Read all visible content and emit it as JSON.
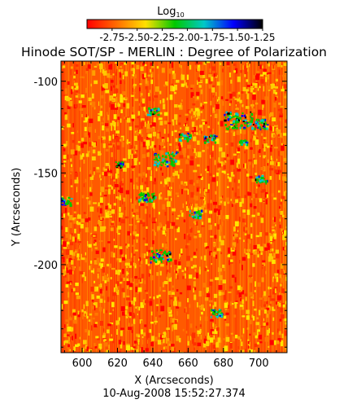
{
  "chart_data": {
    "type": "heatmap",
    "title": "Hinode SOT/SP - MERLIN : Degree of Polarization",
    "colorbar": {
      "label_main": "Log",
      "label_sub": "10",
      "ticks": [
        "-2.75",
        "-2.50",
        "-2.25",
        "-2.00",
        "-1.75",
        "-1.50",
        "-1.25"
      ],
      "range": [
        -3.0,
        -1.25
      ],
      "colors": [
        "#ff0000",
        "#ff6a00",
        "#ffe000",
        "#00c800",
        "#00c8c8",
        "#0000ff",
        "#000000"
      ]
    },
    "xlabel": "X (Arcseconds)",
    "ylabel": "Y (Arcseconds)",
    "xlim": [
      588,
      716
    ],
    "ylim": [
      -248,
      -89
    ],
    "xticks": [
      "600",
      "620",
      "640",
      "660",
      "680",
      "700"
    ],
    "yticks": [
      "-100",
      "-150",
      "-200"
    ],
    "background_color": "#ff5a00",
    "timestamp": "10-Aug-2008 15:52:27.374"
  }
}
